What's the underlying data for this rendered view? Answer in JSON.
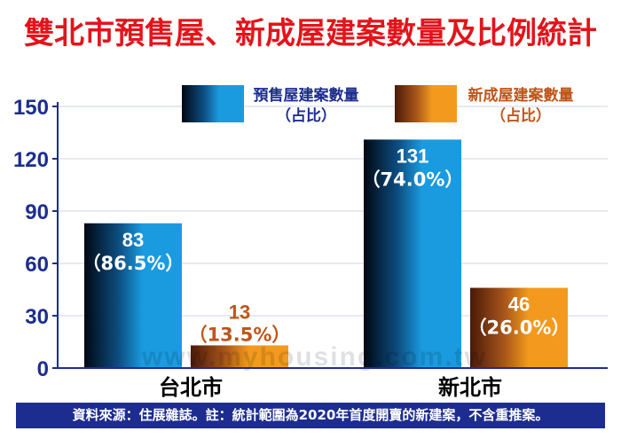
{
  "title": "雙北市預售屋、新成屋建案數量及比例統計",
  "source_note": "資料來源：住展雜誌。註：統計範圍為2020年首度開賣的新建案，不含重推案。",
  "watermark": "www.myhousing.com.tw",
  "colors": {
    "presale": "#1a9be0",
    "newbuild": "#f39a1e",
    "presale_label": "#1d2d8f",
    "newbuild_label": "#c0541a",
    "title": "#e3141b",
    "axis": "#1d2d8f"
  },
  "chart_data": {
    "type": "bar",
    "categories": [
      "台北市",
      "新北市"
    ],
    "series": [
      {
        "name": "預售屋建案數量",
        "legend_sub": "（占比）",
        "values": [
          83,
          131
        ],
        "percent_labels": [
          "（86.5%）",
          "（74.0%）"
        ]
      },
      {
        "name": "新成屋建案數量",
        "legend_sub": "（占比）",
        "values": [
          13,
          46
        ],
        "percent_labels": [
          "（13.5%）",
          "（26.0%）"
        ]
      }
    ],
    "ylim": [
      0,
      150
    ],
    "yticks": [
      0,
      30,
      60,
      90,
      120,
      150
    ],
    "legend_position": "top"
  }
}
